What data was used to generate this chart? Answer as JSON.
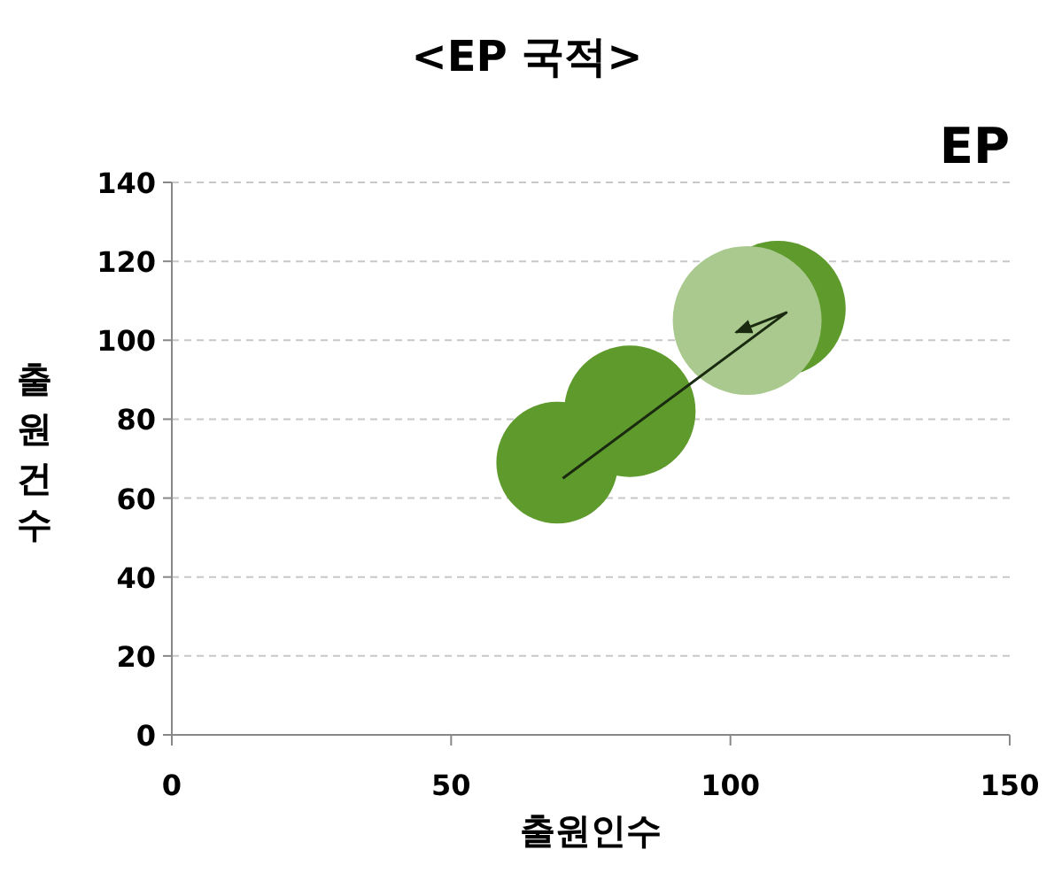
{
  "chart_data": {
    "type": "bubble",
    "title": "<EP 국적>",
    "xlabel": "출원인수",
    "ylabel": "출원건수",
    "annotations": [
      "EP"
    ],
    "series": [
      {
        "x": [
          69,
          82,
          108.5,
          103
        ],
        "values": [
          69,
          82,
          108,
          105
        ],
        "sizes": [
          0.67,
          0.78,
          0.83,
          1
        ],
        "colors": [
          "#5e9a2c",
          "#5e9a2c",
          "#5e9a2c",
          "#a9c98e"
        ]
      },
      {
        "type": "line",
        "x": [
          70,
          110,
          101
        ],
        "values": [
          65,
          107,
          102
        ],
        "color": "#1a2a10"
      }
    ],
    "xlim": [
      0,
      150
    ],
    "ylim": [
      0,
      140
    ],
    "xticks": [
      0,
      50,
      100,
      150
    ],
    "yticks": [
      0,
      20,
      40,
      60,
      80,
      100,
      120,
      140
    ],
    "grid": "y"
  }
}
